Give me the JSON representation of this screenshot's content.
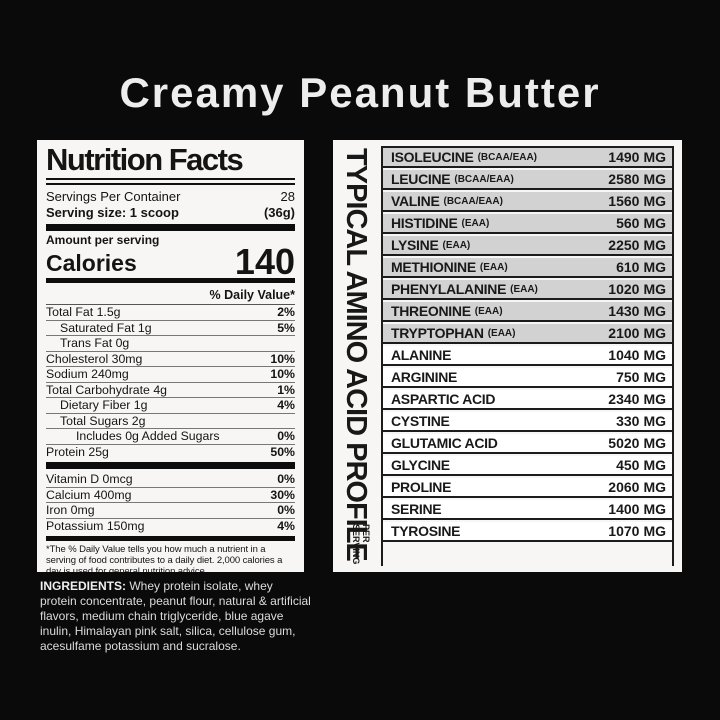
{
  "page": {
    "title": "Creamy Peanut Butter"
  },
  "colors": {
    "background": "#0a0a0a",
    "panel": "#f7f6f4",
    "shaded_row": "#d2d2d2",
    "line": "#1c1c1c",
    "title_text": "#ededed"
  },
  "nutrition_facts": {
    "title": "Nutrition Facts",
    "servings_per_container_label": "Servings Per Container",
    "servings_per_container_value": "28",
    "serving_size_label": "Serving size: 1 scoop",
    "serving_size_value": "(36g)",
    "amount_per_serving_label": "Amount per serving",
    "calories_label": "Calories",
    "calories_value": "140",
    "daily_value_header": "% Daily Value*",
    "rows": [
      {
        "label": "Total Fat 1.5g",
        "value": "2%",
        "indent": 0
      },
      {
        "label": "Saturated Fat 1g",
        "value": "5%",
        "indent": 1
      },
      {
        "label": "Trans Fat 0g",
        "value": "",
        "indent": 1
      },
      {
        "label": "Cholesterol 30mg",
        "value": "10%",
        "indent": 0
      },
      {
        "label": "Sodium 240mg",
        "value": "10%",
        "indent": 0
      },
      {
        "label": "Total Carbohydrate 4g",
        "value": "1%",
        "indent": 0
      },
      {
        "label": "Dietary Fiber 1g",
        "value": "4%",
        "indent": 1
      },
      {
        "label": "Total Sugars 2g",
        "value": "",
        "indent": 1
      },
      {
        "label": "Includes 0g Added Sugars",
        "value": "0%",
        "indent": 2
      },
      {
        "label": "Protein 25g",
        "value": "50%",
        "indent": 0
      }
    ],
    "vitamin_rows": [
      {
        "label": "Vitamin D 0mcg",
        "value": "0%",
        "indent": 0
      },
      {
        "label": "Calcium 400mg",
        "value": "30%",
        "indent": 0
      },
      {
        "label": "Iron 0mg",
        "value": "0%",
        "indent": 0
      },
      {
        "label": "Potassium 150mg",
        "value": "4%",
        "indent": 0
      }
    ],
    "footnote": "*The % Daily Value tells you how much a nutrient in a serving of food contributes to a daily diet. 2,000 calories a day is used for general nutrition advice."
  },
  "ingredients": {
    "label": "INGREDIENTS:",
    "text": " Whey protein isolate, whey protein concentrate, peanut flour, natural & artificial flavors, medium chain triglyceride, blue agave inulin, Himalayan pink salt, silica, cellulose gum, acesulfame potassium and sucralose."
  },
  "amino_profile": {
    "side_title": "TYPICAL AMINO ACID PROFILE",
    "side_subtitle": "PER\nSERVING",
    "unit": "MG",
    "rows": [
      {
        "name": "ISOLEUCINE",
        "tag": "(BCAA/EAA)",
        "value": "1490",
        "shaded": true
      },
      {
        "name": "LEUCINE",
        "tag": "(BCAA/EAA)",
        "value": "2580",
        "shaded": true
      },
      {
        "name": "VALINE",
        "tag": "(BCAA/EAA)",
        "value": "1560",
        "shaded": true
      },
      {
        "name": "HISTIDINE",
        "tag": "(EAA)",
        "value": "560",
        "shaded": true
      },
      {
        "name": "LYSINE",
        "tag": "(EAA)",
        "value": "2250",
        "shaded": true
      },
      {
        "name": "METHIONINE",
        "tag": "(EAA)",
        "value": "610",
        "shaded": true
      },
      {
        "name": "PHENYLALANINE",
        "tag": "(EAA)",
        "value": "1020",
        "shaded": true
      },
      {
        "name": "THREONINE",
        "tag": "(EAA)",
        "value": "1430",
        "shaded": true
      },
      {
        "name": "TRYPTOPHAN",
        "tag": "(EAA)",
        "value": "2100",
        "shaded": true
      },
      {
        "name": "ALANINE",
        "tag": "",
        "value": "1040",
        "shaded": false
      },
      {
        "name": "ARGININE",
        "tag": "",
        "value": "750",
        "shaded": false
      },
      {
        "name": "ASPARTIC ACID",
        "tag": "",
        "value": "2340",
        "shaded": false
      },
      {
        "name": "CYSTINE",
        "tag": "",
        "value": "330",
        "shaded": false
      },
      {
        "name": "GLUTAMIC ACID",
        "tag": "",
        "value": "5020",
        "shaded": false
      },
      {
        "name": "GLYCINE",
        "tag": "",
        "value": "450",
        "shaded": false
      },
      {
        "name": "PROLINE",
        "tag": "",
        "value": "2060",
        "shaded": false
      },
      {
        "name": "SERINE",
        "tag": "",
        "value": "1400",
        "shaded": false
      },
      {
        "name": "TYROSINE",
        "tag": "",
        "value": "1070",
        "shaded": false
      }
    ]
  }
}
